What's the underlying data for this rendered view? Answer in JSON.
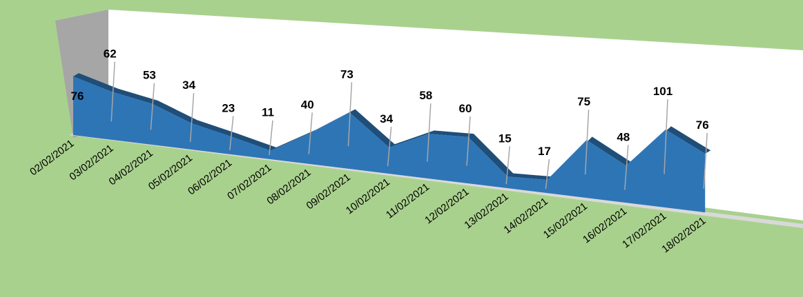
{
  "chart_data": {
    "type": "area",
    "style": "3d",
    "categories": [
      "02/02/2021",
      "03/02/2021",
      "04/02/2021",
      "05/02/2021",
      "06/02/2021",
      "07/02/2021",
      "08/02/2021",
      "09/02/2021",
      "10/02/2021",
      "11/02/2021",
      "12/02/2021",
      "13/02/2021",
      "14/02/2021",
      "15/02/2021",
      "16/02/2021",
      "17/02/2021",
      "18/02/2021"
    ],
    "data_labels": [
      "76",
      "62",
      "53",
      "34",
      "23",
      "11",
      "40",
      "73",
      "34",
      "58",
      "60",
      "15",
      "17",
      "75",
      "48",
      "101",
      "76"
    ],
    "series": [
      {
        "values": [
          76,
          62,
          53,
          34,
          23,
          11,
          40,
          73,
          34,
          58,
          60,
          15,
          17,
          75,
          48,
          101,
          76
        ]
      }
    ],
    "grid": false,
    "legend": "none",
    "colors": {
      "background": "#a9d18e",
      "wall": "#ffffff",
      "side_wall": "#a6a6a6",
      "floor": "#a9d18e",
      "area_fill": "#2e75b6",
      "area_top": "#1f4e79",
      "leader_line": "#a6a6a6"
    }
  }
}
